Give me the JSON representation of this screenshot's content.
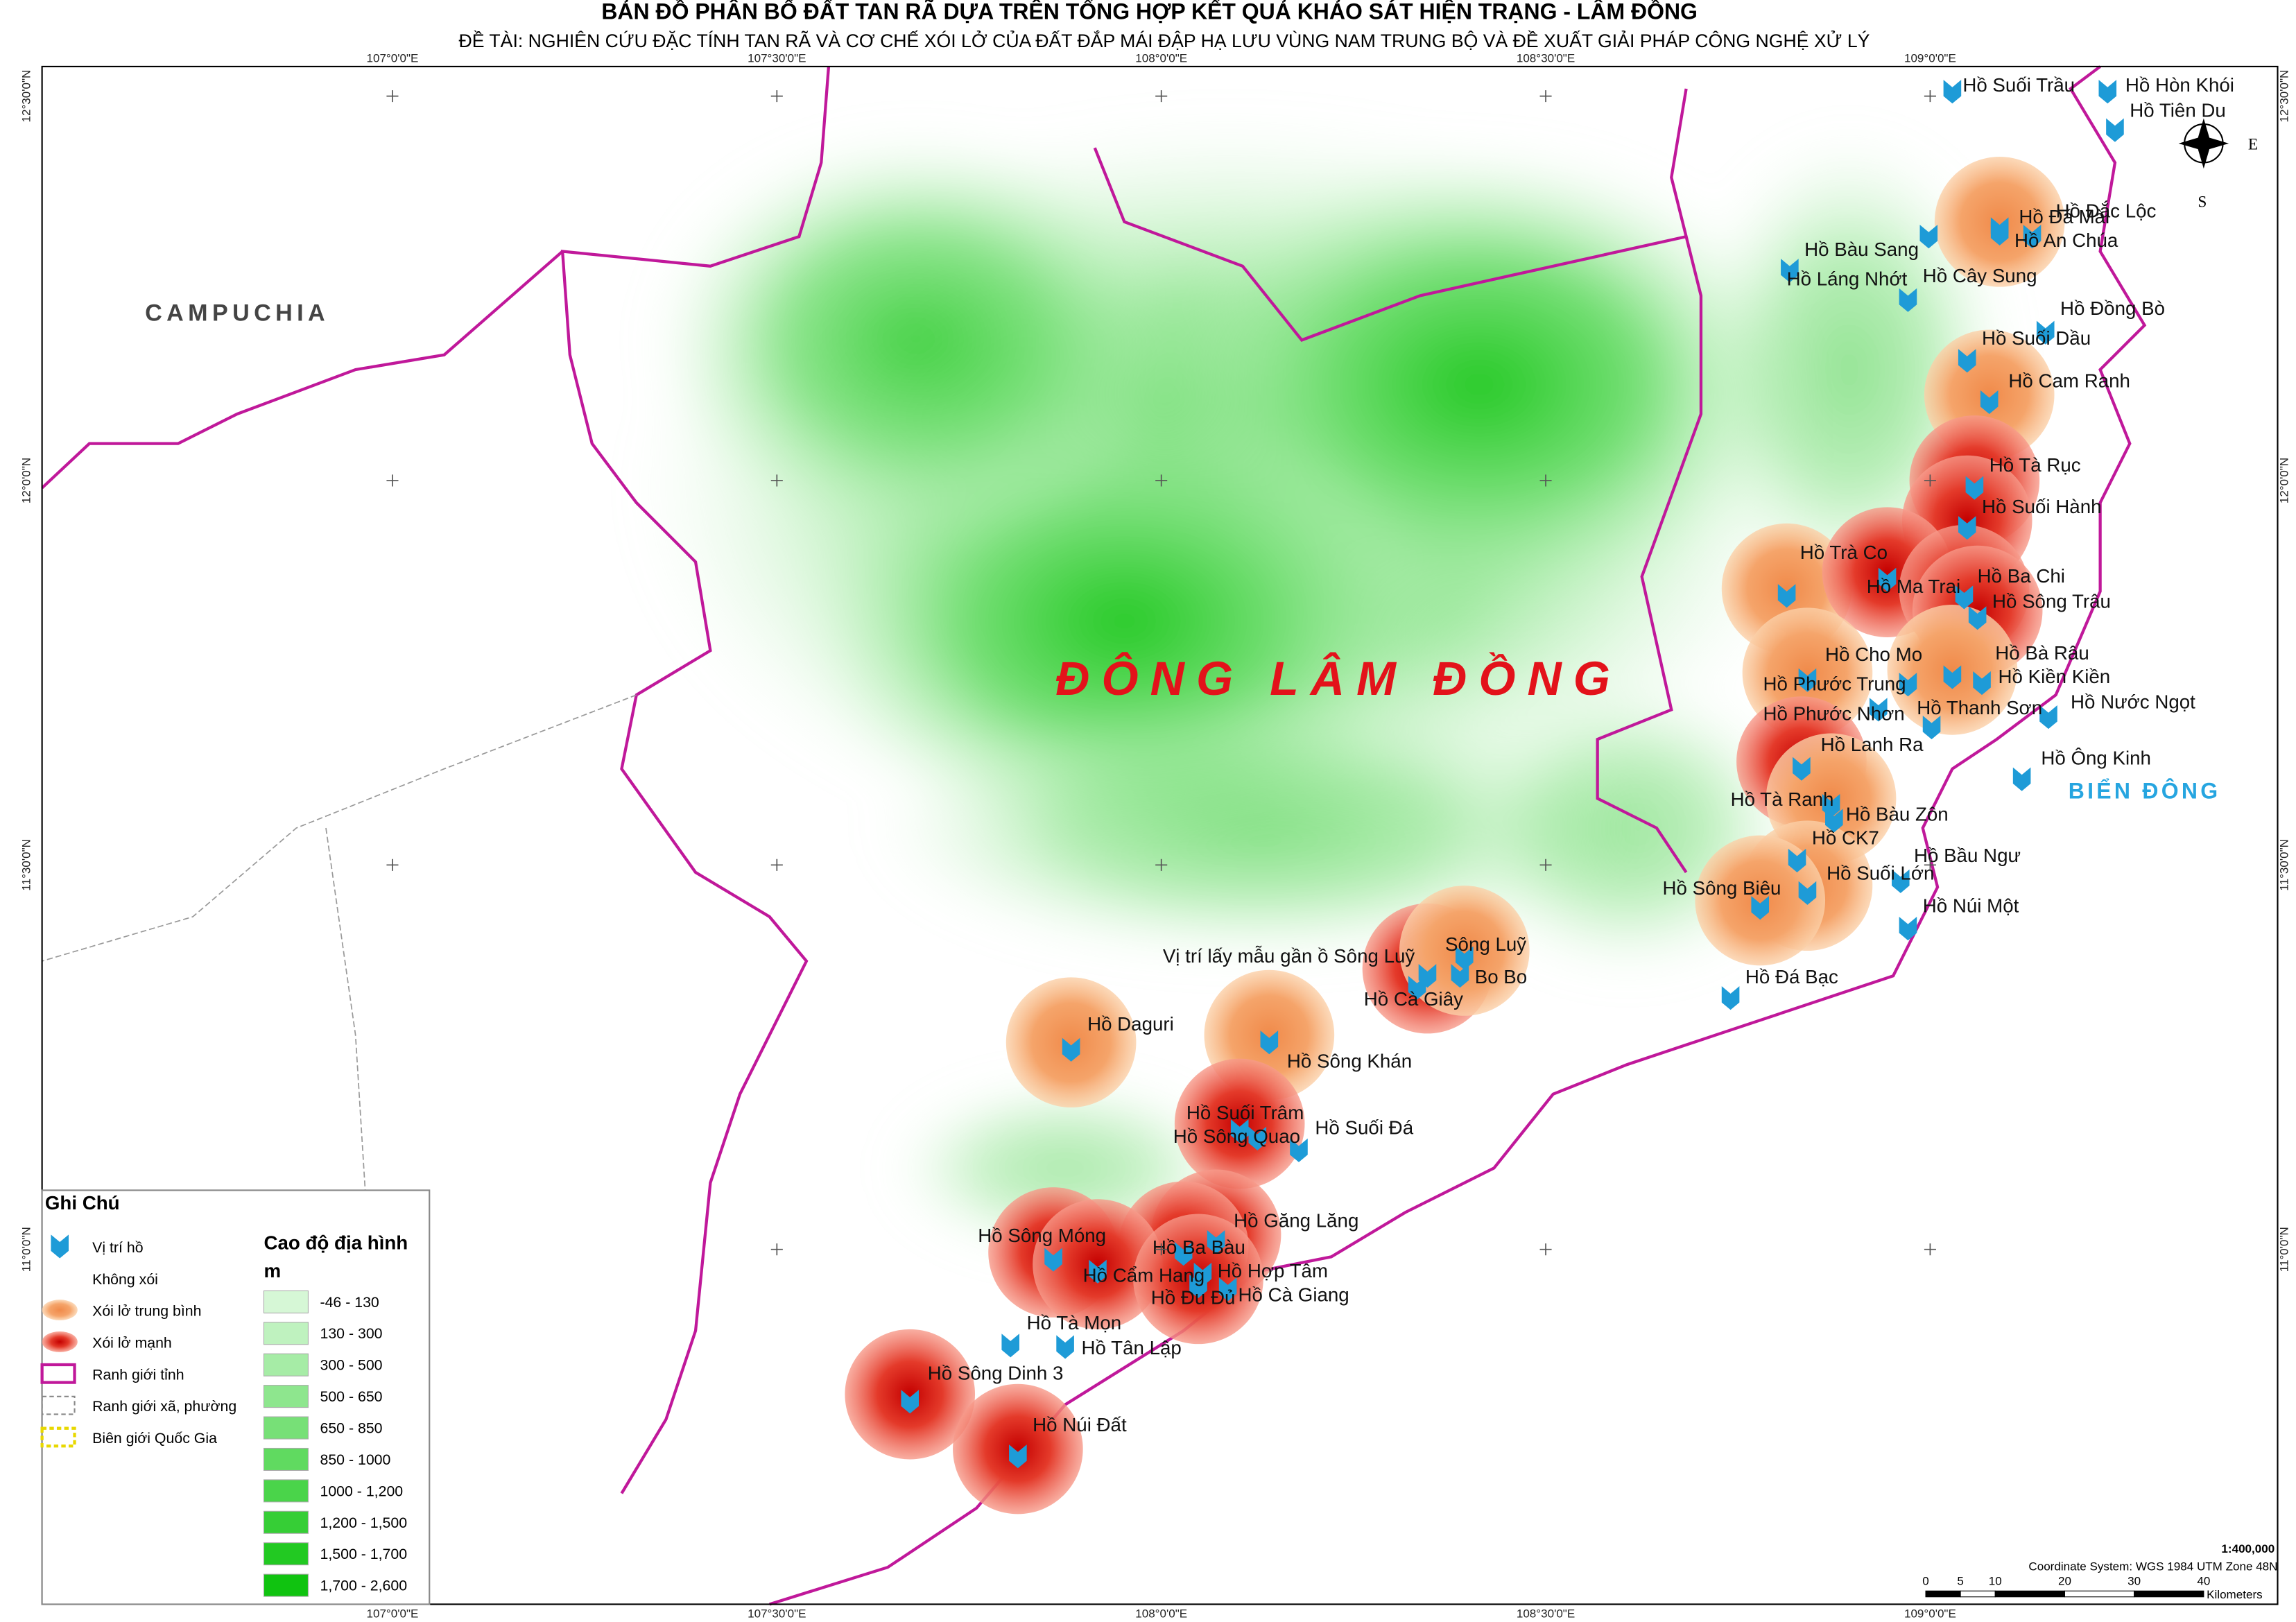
{
  "header": {
    "title": "BẢN ĐỒ PHÂN BỐ ĐẤT TAN RÃ DỰA TRÊN TỔNG HỢP KẾT QUẢ KHẢO SÁT HIỆN TRẠNG - LÂM ĐỒNG",
    "subtitle": "ĐỀ TÀI: NGHIÊN CỨU ĐẶC TÍNH TAN RÃ VÀ CƠ CHẾ XÓI LỞ CỦA ĐẤT ĐẮP MÁI ĐẬP HẠ LƯU VÙNG NAM TRUNG BỘ VÀ ĐỀ XUẤT GIẢI PHÁP CÔNG NGHỆ XỬ LÝ"
  },
  "map": {
    "regions": [
      "CAMPUCHIA",
      "ĐÔNG LÂM ĐỒNG",
      "BIỂN ĐÔNG"
    ],
    "compass": [
      "E",
      "S"
    ],
    "graticule": {
      "longitudes": [
        "107°0'0\"E",
        "107°30'0\"E",
        "108°0'0\"E",
        "108°30'0\"E",
        "109°0'0\"E"
      ],
      "latitudes": [
        "12°30'0\"N",
        "12°0'0\"N",
        "11°30'0\"N",
        "11°0'0\"N"
      ]
    },
    "lakes": [
      "Hồ Suối Trầu",
      "Hồ Hòn Khói",
      "Hồ Tiên Du",
      "Hồ Đá Mài",
      "Hồ Đắc Lộc",
      "Hồ An Chúa",
      "Hồ Bàu Sang",
      "Hồ Láng Nhớt",
      "Hồ Cây Sung",
      "Hồ Đồng Bò",
      "Hồ Suối Dầu",
      "Hồ Cam Ranh",
      "Hồ Tà Rục",
      "Hồ Suối Hành",
      "Hồ Trà Co",
      "Hồ Ma Trai",
      "Hồ Ba Chi",
      "Hồ Sông Trâu",
      "Hồ Cho Mo",
      "Hồ Bà Râu",
      "Hồ Phước Trung",
      "Hồ Kiền Kiền",
      "Hồ Thanh Sơn",
      "Hồ Nước Ngọt",
      "Hồ Phước Nhơn",
      "Hồ Lanh Ra",
      "Hồ Ông Kinh",
      "Hồ Tà Ranh",
      "Hồ Bàu Zôn",
      "Hồ CK7",
      "Hồ Bầu Ngư",
      "Hồ Suối Lớn",
      "Hồ Sông Biêu",
      "Hồ Núi Một",
      "Hồ Đá Bạc",
      "Vị trí lấy mẫu gần ồ Sông Luỹ",
      "Sông Luỹ",
      "Bo Bo",
      "Hồ Cà Giây",
      "Hồ Daguri",
      "Hồ Sông Khán",
      "Hồ Suối Trâm",
      "Hồ Sông Quao",
      "Hồ Suối Đá",
      "Hồ Găng Lăng",
      "Hồ Sông Móng",
      "Hồ Ba Bàu",
      "Hồ Cẩm Hang",
      "Hồ Hợp Tâm",
      "Hồ Đu Đủ",
      "Hồ Cà Giang",
      "Hồ Tà Mọn",
      "Hồ Tân Lập",
      "Hồ Sông Dinh 3",
      "Hồ Núi Đất"
    ]
  },
  "legend": {
    "title": "Ghi Chú",
    "items": [
      "Vị trí hồ",
      "Không xói",
      "Xói lở trung bình",
      "Xói lở mạnh",
      "Ranh giới tỉnh",
      "Ranh giới xã, phường",
      "Biên giới Quốc Gia"
    ],
    "elevation_title": "Cao độ địa hình",
    "elevation_unit": "m",
    "elevation_classes": [
      {
        "label": "-46 - 130",
        "color": "#d6f7d6"
      },
      {
        "label": "130 - 300",
        "color": "#bff2bf"
      },
      {
        "label": "300 - 500",
        "color": "#a6eca6"
      },
      {
        "label": "500 - 650",
        "color": "#8ee68e"
      },
      {
        "label": "650 - 850",
        "color": "#77e077"
      },
      {
        "label": "850 - 1000",
        "color": "#60da60"
      },
      {
        "label": "1000 - 1,200",
        "color": "#4ad44a"
      },
      {
        "label": "1,200 - 1,500",
        "color": "#36ce36"
      },
      {
        "label": "1,500 - 1,700",
        "color": "#22c922"
      },
      {
        "label": "1,700 - 2,600",
        "color": "#10c310"
      }
    ]
  },
  "scale": {
    "ratio": "1:400,000",
    "coordinate_system": "Coordinate System: WGS 1984 UTM Zone 48N",
    "ticks": [
      0,
      5,
      10,
      20,
      30,
      40
    ],
    "unit": "Kilometers"
  }
}
